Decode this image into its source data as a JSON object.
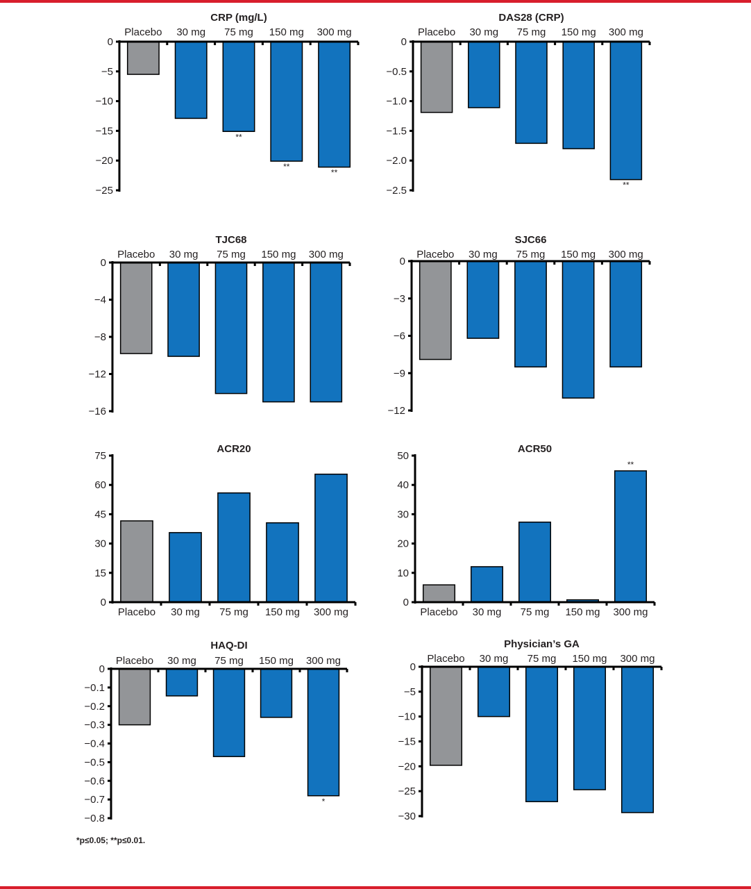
{
  "footnote": "*p≤0.05; **p≤0.01.",
  "colors": {
    "placebo": "#939598",
    "active": "#1273be",
    "axis": "#000000",
    "text": "#231f20",
    "accent_rule": "#d81e2c"
  },
  "chart_data": [
    {
      "type": "bar",
      "title": "CRP (mg/L)",
      "categories": [
        "Placebo",
        "30 mg",
        "75 mg",
        "150 mg",
        "300 mg"
      ],
      "values": [
        -5.5,
        -12.9,
        -15.1,
        -20.1,
        -21.1
      ],
      "annotations": [
        "",
        "",
        "**",
        "**",
        "**"
      ],
      "yticks": [
        0,
        -5,
        -10,
        -15,
        -20,
        -25
      ],
      "ytick_labels": [
        "0",
        "−5",
        "−10",
        "−15",
        "−20",
        "−25"
      ],
      "ylim": [
        -25,
        0
      ],
      "xlabel": "",
      "ylabel": "",
      "category_labels_position": "top",
      "grid": false
    },
    {
      "type": "bar",
      "title": "DAS28 (CRP)",
      "categories": [
        "Placebo",
        "30 mg",
        "75 mg",
        "150 mg",
        "300 mg"
      ],
      "values": [
        -1.19,
        -1.11,
        -1.71,
        -1.8,
        -2.32
      ],
      "annotations": [
        "",
        "",
        "",
        "",
        "**"
      ],
      "yticks": [
        0,
        -0.5,
        -1.0,
        -1.5,
        -2.0,
        -2.5
      ],
      "ytick_labels": [
        "0",
        "−0.5",
        "−1.0",
        "−1.5",
        "−2.0",
        "−2.5"
      ],
      "ylim": [
        -2.5,
        0
      ],
      "xlabel": "",
      "ylabel": "",
      "category_labels_position": "top",
      "grid": false
    },
    {
      "type": "bar",
      "title": "TJC68",
      "categories": [
        "Placebo",
        "30 mg",
        "75 mg",
        "150 mg",
        "300 mg"
      ],
      "values": [
        -9.8,
        -10.1,
        -14.1,
        -15.0,
        -15.0
      ],
      "annotations": [
        "",
        "",
        "",
        "",
        ""
      ],
      "yticks": [
        0,
        -4,
        -8,
        -12,
        -16
      ],
      "ytick_labels": [
        "0",
        "−4",
        "−8",
        "−12",
        "−16"
      ],
      "ylim": [
        -16,
        0
      ],
      "xlabel": "",
      "ylabel": "",
      "category_labels_position": "top",
      "grid": false
    },
    {
      "type": "bar",
      "title": "SJC66",
      "categories": [
        "Placebo",
        "30 mg",
        "75 mg",
        "150 mg",
        "300 mg"
      ],
      "values": [
        -7.9,
        -6.2,
        -8.5,
        -11.0,
        -8.5
      ],
      "annotations": [
        "",
        "",
        "",
        "",
        ""
      ],
      "yticks": [
        0,
        -3,
        -6,
        -9,
        -12
      ],
      "ytick_labels": [
        "0",
        "−3",
        "−6",
        "−9",
        "−12"
      ],
      "ylim": [
        -12,
        0
      ],
      "xlabel": "",
      "ylabel": "",
      "category_labels_position": "top",
      "grid": false
    },
    {
      "type": "bar",
      "title": "ACR20",
      "categories": [
        "Placebo",
        "30 mg",
        "75 mg",
        "150 mg",
        "300 mg"
      ],
      "values": [
        41.6,
        35.6,
        55.9,
        40.6,
        65.5
      ],
      "annotations": [
        "",
        "",
        "",
        "",
        ""
      ],
      "yticks": [
        0,
        15,
        30,
        45,
        60,
        75
      ],
      "ytick_labels": [
        "0",
        "15",
        "30",
        "45",
        "60",
        "75"
      ],
      "ylim": [
        0,
        75
      ],
      "xlabel": "",
      "ylabel": "",
      "category_labels_position": "bottom",
      "grid": false
    },
    {
      "type": "bar",
      "title": "ACR50",
      "categories": [
        "Placebo",
        "30 mg",
        "75 mg",
        "150 mg",
        "300 mg"
      ],
      "values": [
        5.9,
        12.1,
        27.3,
        0.8,
        44.8
      ],
      "annotations": [
        "",
        "",
        "",
        "",
        "**"
      ],
      "yticks": [
        0,
        10,
        20,
        30,
        40,
        50
      ],
      "ytick_labels": [
        "0",
        "10",
        "20",
        "30",
        "40",
        "50"
      ],
      "ylim": [
        0,
        50
      ],
      "xlabel": "",
      "ylabel": "",
      "category_labels_position": "bottom",
      "grid": false
    },
    {
      "type": "bar",
      "title": "HAQ-DI",
      "categories": [
        "Placebo",
        "30 mg",
        "75 mg",
        "150 mg",
        "300 mg"
      ],
      "values": [
        -0.3,
        -0.145,
        -0.47,
        -0.26,
        -0.68
      ],
      "annotations": [
        "",
        "",
        "",
        "",
        "*"
      ],
      "yticks": [
        0,
        -0.1,
        -0.2,
        -0.3,
        -0.4,
        -0.5,
        -0.6,
        -0.7,
        -0.8
      ],
      "ytick_labels": [
        "0",
        "−0.1",
        "−0.2",
        "−0.3",
        "−0.4",
        "−0.5",
        "−0.6",
        "−0.7",
        "−0.8"
      ],
      "ylim": [
        -0.8,
        0
      ],
      "xlabel": "",
      "ylabel": "",
      "category_labels_position": "top",
      "grid": false
    },
    {
      "type": "bar",
      "title": "Physician’s GA",
      "categories": [
        "Placebo",
        "30 mg",
        "75 mg",
        "150 mg",
        "300 mg"
      ],
      "values": [
        -19.8,
        -10.0,
        -27.1,
        -24.7,
        -29.3
      ],
      "annotations": [
        "",
        "",
        "",
        "",
        ""
      ],
      "yticks": [
        0,
        -5,
        -10,
        -15,
        -20,
        -25,
        -30
      ],
      "ytick_labels": [
        "0",
        "−5",
        "−10",
        "−15",
        "−20",
        "−25",
        "−30"
      ],
      "ylim": [
        -30,
        0
      ],
      "xlabel": "",
      "ylabel": "",
      "category_labels_position": "top",
      "grid": false
    }
  ]
}
